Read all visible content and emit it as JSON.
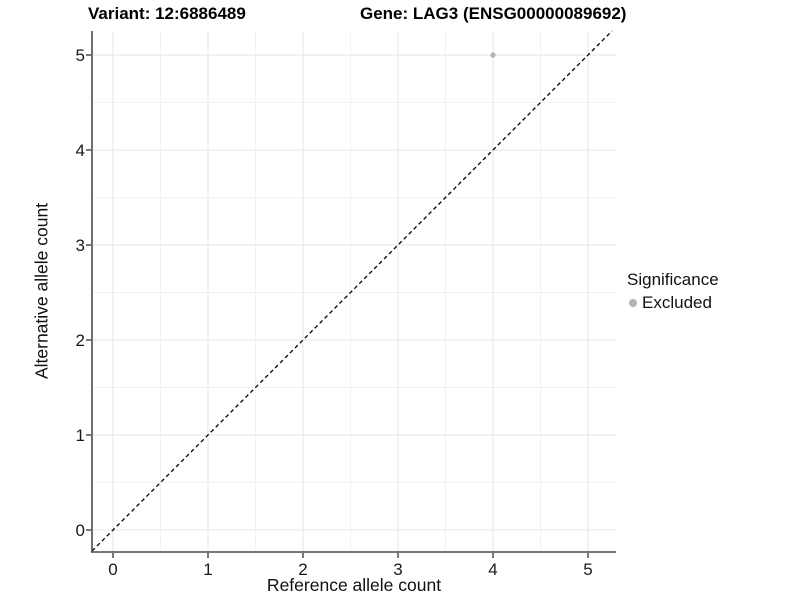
{
  "titles": {
    "variant": "Variant: 12:6886489",
    "gene": "Gene: LAG3 (ENSG00000089692)"
  },
  "legend": {
    "title": "Significance",
    "items": [
      {
        "label": "Excluded",
        "color": "#b3b3b3"
      }
    ]
  },
  "chart_data": {
    "type": "scatter",
    "title_left": "Variant: 12:6886489",
    "title_right": "Gene: LAG3 (ENSG00000089692)",
    "xlabel": "Reference allele count",
    "ylabel": "Alternative allele count",
    "xlim": [
      -0.23,
      5.29
    ],
    "ylim": [
      -0.23,
      5.29
    ],
    "x_ticks": [
      0,
      1,
      2,
      3,
      4,
      5
    ],
    "y_ticks": [
      0,
      1,
      2,
      3,
      4,
      5
    ],
    "grid": "major+minor",
    "legend_position": "right",
    "series": [
      {
        "name": "Excluded",
        "color": "#b3b3b3",
        "points": [
          {
            "x": 4,
            "y": 5
          }
        ]
      }
    ],
    "reference_line": {
      "type": "identity y=x",
      "style": "dashed",
      "color": "#000000"
    },
    "colors": {
      "background": "#ffffff",
      "grid_major": "#e4e4e4",
      "grid_minor": "#f2f2f2",
      "axis_line": "#4a4a4a",
      "tick_mark": "#333333",
      "tick_text": "#1a1a1a"
    }
  }
}
